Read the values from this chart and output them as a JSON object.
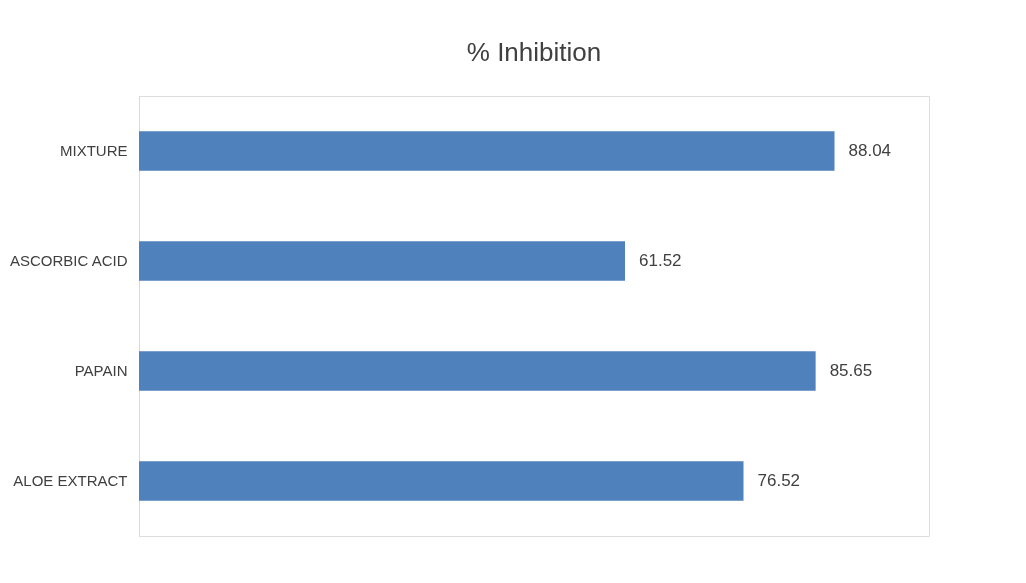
{
  "chart_data": {
    "type": "bar",
    "title": "% Inhibition",
    "orientation": "horizontal",
    "categories": [
      "MIXTURE",
      "ASCORBIC ACID",
      "PAPAIN",
      "ALOE EXTRACT"
    ],
    "values": [
      88.04,
      61.52,
      85.65,
      76.52
    ],
    "color": "#4f81bd",
    "xlim": [
      0,
      100
    ],
    "data_labels": true,
    "tick_labels": "y",
    "grid": false
  }
}
